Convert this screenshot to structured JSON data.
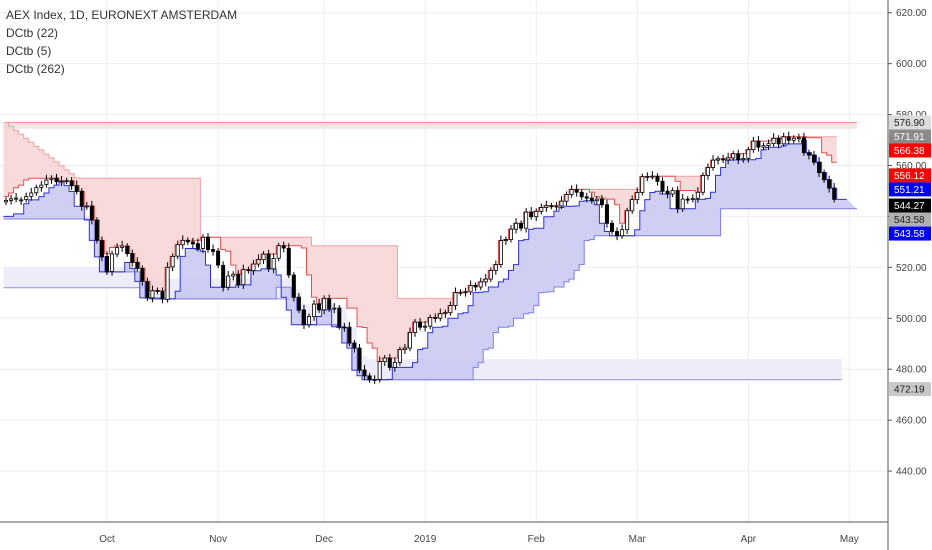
{
  "chart_data": {
    "type": "candlestick",
    "title": "AEX Index, 1D, EURONEXT AMSTERDAM",
    "indicators": [
      "DCtb (22)",
      "DCtb (5)",
      "DCtb (262)"
    ],
    "ylim": [
      420,
      625
    ],
    "y_ticks": [
      440,
      460,
      480,
      500,
      520,
      540,
      560,
      580,
      600,
      620
    ],
    "y_tick_labels": [
      "440.00",
      "460.00",
      "480.00",
      "500.00",
      "520.00",
      "540.00",
      "560.00",
      "580.00",
      "600.00",
      "620.00"
    ],
    "x_labels": [
      "Oct",
      "Nov",
      "Dec",
      "2019",
      "Feb",
      "Mar",
      "Apr",
      "May"
    ],
    "x_label_index": [
      20,
      42,
      63,
      83,
      105,
      125,
      147,
      167
    ],
    "close": [
      546.3,
      546.9,
      547.2,
      546.5,
      547.8,
      549.2,
      551.3,
      552.3,
      554.3,
      555.0,
      553.7,
      553.9,
      554.0,
      552.1,
      549.8,
      544.0,
      544.1,
      538.6,
      530.6,
      524.1,
      518.2,
      525.3,
      527.8,
      528.4,
      525.4,
      521.9,
      519.6,
      514.5,
      508.0,
      510.8,
      510.6,
      507.6,
      520.0,
      524.3,
      528.9,
      530.6,
      530.0,
      529.2,
      527.4,
      531.8,
      527.0,
      526.3,
      520.9,
      512.2,
      516.6,
      517.3,
      513.1,
      519.1,
      518.7,
      521.3,
      523.1,
      525.2,
      519.4,
      523.5,
      528.5,
      527.6,
      517.0,
      508.3,
      503.2,
      497.5,
      500.7,
      505.6,
      503.3,
      507.8,
      503.7,
      504.0,
      496.7,
      496.4,
      490.3,
      488.3,
      479.6,
      477.4,
      475.9,
      476.0,
      483.0,
      484.4,
      480.7,
      482.6,
      487.7,
      488.3,
      494.4,
      498.5,
      496.5,
      496.9,
      500.3,
      500.0,
      501.8,
      502.2,
      505.0,
      510.1,
      510.2,
      510.4,
      512.9,
      512.3,
      514.3,
      515.4,
      518.8,
      521.1,
      530.5,
      530.9,
      535.0,
      537.3,
      535.4,
      541.7,
      539.9,
      542.0,
      543.5,
      544.2,
      544.0,
      544.1,
      546.0,
      548.6,
      550.6,
      549.5,
      547.7,
      547.2,
      546.2,
      546.8,
      544.6,
      537.3,
      534.1,
      532.4,
      534.8,
      542.2,
      546.6,
      549.4,
      555.6,
      555.7,
      555.8,
      553.8,
      549.9,
      548.8,
      550.2,
      543.0,
      546.8,
      546.7,
      547.1,
      549.5,
      556.1,
      559.2,
      562.1,
      562.6,
      562.2,
      563.0,
      564.6,
      562.3,
      562.8,
      566.2,
      569.6,
      567.2,
      567.8,
      568.6,
      570.7,
      568.5,
      571.3,
      569.9,
      570.7,
      570.9,
      565.0,
      564.1,
      561.3,
      557.2,
      554.4,
      551.1,
      546.7
    ],
    "open_offset": [
      0.6,
      0.6,
      0.4,
      0.3,
      1.1,
      1.3,
      2.0,
      0.9,
      1.8,
      0.5,
      -1.4,
      0.2,
      0.1,
      -1.8,
      -2.3,
      -5.9,
      0.3,
      -5.5,
      -7.9,
      -6.4,
      -6.1,
      6.9,
      2.6,
      0.6,
      -2.9,
      -3.5,
      -2.4,
      -5.1,
      -6.4,
      2.8,
      -0.3,
      -2.9,
      12.6,
      4.1,
      4.5,
      1.7,
      -0.6,
      -0.8,
      -1.9,
      4.4,
      -4.9,
      -0.7,
      -5.5,
      -8.6,
      4.4,
      0.7,
      -4.2,
      5.9,
      -0.4,
      2.6,
      1.8,
      2.2,
      -5.9,
      4.1,
      4.9,
      -0.9,
      -10.5,
      -8.7,
      -5.1,
      -5.8,
      3.2,
      4.9,
      -2.4,
      4.5,
      -4.0,
      0.3,
      -7.3,
      -0.2,
      -6.2,
      -2.0,
      -8.7,
      -2.3,
      -1.5,
      0.1,
      7.0,
      1.4,
      -3.7,
      1.9,
      5.1,
      0.6,
      6.1,
      4.1,
      -2.0,
      0.4,
      3.4,
      -0.3,
      1.8,
      0.4,
      2.8,
      5.1,
      0.1,
      0.2,
      2.5,
      -0.6,
      2.0,
      1.1,
      3.4,
      2.3,
      9.4,
      0.4,
      4.1,
      2.3,
      -1.9,
      6.3,
      -1.8,
      2.1,
      1.5,
      0.7,
      -0.2,
      0.1,
      1.9,
      2.6,
      2.0,
      -1.1,
      -1.8,
      -0.5,
      -1.0,
      0.6,
      -2.2,
      -7.3,
      -3.2,
      -1.7,
      2.4,
      7.4,
      4.4,
      2.8,
      6.2,
      0.1,
      0.1,
      -2.0,
      -3.9,
      -1.1,
      1.4,
      -7.2,
      3.8,
      -0.1,
      0.4,
      2.4,
      6.6,
      3.1,
      2.9,
      0.5,
      -0.4,
      0.8,
      1.6,
      -2.3,
      0.5,
      3.4,
      3.4,
      -2.4,
      0.6,
      0.8,
      2.1,
      -2.2,
      2.8,
      -1.4,
      0.8,
      0.2,
      -5.9,
      -0.9,
      -2.8,
      -4.1,
      -2.8,
      -3.3,
      -4.4
    ],
    "dc22_upper": [
      576.9,
      575.4,
      573.8,
      572.3,
      570.7,
      569.2,
      567.6,
      566.1,
      564.5,
      563.0,
      561.4,
      559.9,
      558.3,
      556.8,
      555.2,
      555.0,
      555.0,
      555.0,
      555.0,
      555.0,
      555.0,
      555.0,
      555.0,
      555.0,
      555.0,
      555.0,
      555.0,
      555.0,
      555.0,
      555.0,
      555.0,
      555.0,
      555.0,
      555.0,
      555.0,
      555.0,
      555.0,
      555.0,
      555.0,
      531.8,
      531.8,
      531.8,
      531.8,
      531.8,
      531.8,
      531.8,
      531.8,
      531.8,
      531.8,
      531.8,
      531.8,
      531.8,
      531.8,
      531.8,
      531.8,
      531.8,
      531.8,
      531.8,
      531.8,
      531.8,
      531.8,
      528.5,
      528.5,
      528.5,
      528.5,
      528.5,
      528.5,
      528.5,
      528.5,
      528.5,
      528.5,
      528.5,
      528.5,
      528.5,
      528.5,
      528.5,
      528.5,
      528.5,
      507.8,
      507.8,
      507.8,
      507.8,
      507.8,
      507.8,
      507.8,
      507.8,
      507.8,
      507.8,
      507.8,
      510.1,
      510.2,
      510.4,
      512.9,
      512.9,
      514.3,
      515.4,
      518.8,
      521.1,
      530.5,
      530.9,
      535.0,
      537.3,
      537.3,
      541.7,
      541.7,
      542.0,
      543.5,
      544.2,
      544.2,
      544.2,
      546.0,
      548.6,
      550.6,
      550.6,
      550.6,
      550.6,
      550.6,
      550.6,
      550.6,
      550.6,
      550.6,
      550.6,
      550.6,
      550.6,
      550.6,
      550.6,
      555.6,
      555.7,
      555.8,
      555.8,
      555.8,
      555.8,
      555.8,
      555.8,
      555.8,
      555.8,
      555.8,
      555.8,
      556.1,
      559.2,
      562.1,
      562.6,
      562.6,
      563.0,
      564.6,
      564.6,
      564.6,
      566.2,
      569.6,
      569.6,
      569.6,
      569.6,
      570.7,
      570.7,
      571.3,
      571.3,
      571.3,
      571.3,
      571.3,
      571.3,
      571.3,
      571.3,
      571.3,
      571.3,
      571.3
    ],
    "dc22_lower": [
      539.0,
      539.0,
      539.0,
      539.0,
      539.0,
      539.0,
      539.0,
      539.0,
      539.0,
      539.0,
      539.0,
      539.0,
      539.0,
      539.0,
      539.0,
      539.0,
      539.0,
      538.6,
      530.6,
      524.1,
      518.2,
      518.2,
      518.2,
      518.2,
      518.2,
      518.2,
      518.2,
      514.5,
      508.0,
      508.0,
      508.0,
      507.6,
      507.6,
      507.6,
      507.6,
      507.6,
      507.6,
      507.6,
      507.6,
      507.6,
      507.6,
      507.6,
      507.6,
      507.6,
      507.6,
      507.6,
      507.6,
      507.6,
      507.6,
      507.6,
      507.6,
      507.6,
      507.6,
      507.6,
      512.2,
      512.2,
      512.2,
      508.3,
      503.2,
      497.5,
      497.5,
      497.5,
      497.5,
      497.5,
      497.5,
      497.5,
      496.7,
      496.4,
      490.3,
      488.3,
      479.6,
      477.4,
      475.9,
      475.9,
      475.9,
      475.9,
      475.9,
      475.9,
      475.9,
      475.9,
      475.9,
      475.9,
      475.9,
      475.9,
      475.9,
      475.9,
      475.9,
      475.9,
      475.9,
      475.9,
      475.9,
      475.9,
      475.9,
      480.7,
      482.6,
      487.7,
      488.3,
      494.4,
      496.5,
      496.5,
      496.9,
      500.0,
      500.0,
      501.8,
      502.2,
      505.0,
      510.1,
      510.2,
      510.4,
      512.3,
      512.3,
      514.3,
      515.4,
      518.8,
      521.1,
      530.5,
      530.9,
      532.4,
      532.4,
      532.4,
      532.4,
      532.4,
      532.4,
      532.4,
      532.4,
      532.4,
      532.4,
      532.4,
      532.4,
      532.4,
      532.4,
      532.4,
      532.4,
      532.4,
      532.4,
      532.4,
      532.4,
      532.4,
      532.4,
      532.4,
      532.4,
      532.4,
      543.0,
      543.0,
      543.0,
      543.0,
      543.0,
      543.0,
      543.0,
      543.0,
      543.0,
      543.0,
      543.0,
      543.0,
      543.0,
      543.0,
      543.0,
      543.0,
      543.0,
      543.0,
      543.0,
      543.0,
      543.0,
      543.0,
      543.0,
      543.0,
      543.0,
      543.0,
      543.0
    ],
    "dc5_upper": [
      547.8,
      549.2,
      551.3,
      552.3,
      554.3,
      555.0,
      555.0,
      555.0,
      555.0,
      555.0,
      555.0,
      554.0,
      554.0,
      554.0,
      552.1,
      549.8,
      544.1,
      544.1,
      538.6,
      530.6,
      525.3,
      527.8,
      528.4,
      528.4,
      528.4,
      525.4,
      521.9,
      519.6,
      514.5,
      510.8,
      510.8,
      510.8,
      520.0,
      524.3,
      528.9,
      530.6,
      530.6,
      530.6,
      530.6,
      531.8,
      531.8,
      531.8,
      531.8,
      527.0,
      526.3,
      520.9,
      517.3,
      519.1,
      519.1,
      521.3,
      523.1,
      525.2,
      525.2,
      525.2,
      528.5,
      528.5,
      528.5,
      528.5,
      528.5,
      527.6,
      517.0,
      508.3,
      505.6,
      507.8,
      507.8,
      507.8,
      507.8,
      507.8,
      504.0,
      504.0,
      496.7,
      496.4,
      490.3,
      488.3,
      483.0,
      484.4,
      484.4,
      484.4,
      487.7,
      488.3,
      494.4,
      498.5,
      498.5,
      498.5,
      500.3,
      500.3,
      501.8,
      502.2,
      505.0,
      510.1,
      510.2,
      510.4,
      512.9,
      512.9,
      514.3,
      515.4,
      518.8,
      521.1,
      530.5,
      530.9,
      535.0,
      537.3,
      537.3,
      541.7,
      541.7,
      542.0,
      543.5,
      544.2,
      544.2,
      544.2,
      546.0,
      548.6,
      550.6,
      550.6,
      550.6,
      550.6,
      549.5,
      547.7,
      547.2,
      546.8,
      546.8,
      544.6,
      537.3,
      542.2,
      546.6,
      549.4,
      555.6,
      555.7,
      555.8,
      555.8,
      555.8,
      555.8,
      555.8,
      553.8,
      550.2,
      550.2,
      550.2,
      549.5,
      556.1,
      559.2,
      562.1,
      562.6,
      562.6,
      563.0,
      564.6,
      564.6,
      564.6,
      566.2,
      569.6,
      569.6,
      569.6,
      569.6,
      570.7,
      570.7,
      571.3,
      571.3,
      571.3,
      571.3,
      571.3,
      570.9,
      570.9,
      570.9,
      565.0,
      564.1,
      561.3
    ],
    "dc5_lower": [
      540.0,
      540.0,
      541.0,
      541.0,
      545.0,
      546.5,
      546.5,
      547.8,
      549.2,
      551.3,
      552.3,
      553.7,
      552.1,
      549.8,
      544.0,
      544.0,
      538.6,
      530.6,
      524.1,
      518.2,
      518.2,
      518.2,
      518.2,
      518.2,
      521.9,
      519.6,
      514.5,
      508.0,
      508.0,
      507.6,
      507.6,
      507.6,
      507.6,
      507.6,
      510.6,
      524.3,
      527.4,
      527.4,
      527.0,
      526.3,
      520.9,
      512.2,
      512.2,
      512.2,
      512.2,
      512.2,
      513.1,
      513.1,
      513.1,
      518.7,
      518.7,
      519.4,
      519.4,
      519.4,
      517.0,
      508.3,
      503.2,
      497.5,
      497.5,
      497.5,
      497.5,
      497.5,
      500.7,
      503.3,
      503.3,
      496.7,
      496.4,
      490.3,
      488.3,
      479.6,
      477.4,
      475.9,
      475.9,
      475.9,
      475.9,
      475.9,
      476.0,
      480.7,
      480.7,
      480.7,
      480.7,
      482.6,
      487.7,
      488.3,
      494.4,
      496.5,
      496.5,
      496.9,
      500.0,
      500.0,
      501.8,
      502.2,
      505.0,
      510.1,
      510.2,
      510.4,
      512.3,
      512.3,
      514.3,
      515.4,
      518.8,
      521.1,
      530.5,
      530.9,
      535.0,
      535.4,
      535.4,
      539.9,
      539.9,
      542.0,
      543.5,
      544.0,
      544.0,
      544.1,
      546.0,
      546.2,
      546.2,
      544.6,
      537.3,
      534.1,
      532.4,
      532.4,
      532.4,
      532.4,
      532.4,
      534.8,
      542.2,
      546.6,
      549.4,
      549.9,
      548.8,
      548.8,
      543.0,
      543.0,
      543.0,
      543.0,
      543.0,
      546.7,
      546.7,
      547.1,
      549.5,
      556.1,
      559.2,
      562.1,
      562.2,
      562.2,
      562.2,
      562.3,
      562.3,
      562.8,
      566.2,
      567.2,
      567.2,
      567.2,
      567.8,
      568.5,
      568.5,
      568.5,
      569.9,
      565.0,
      564.1,
      561.3,
      557.2,
      554.4,
      551.1,
      546.7,
      546.7
    ],
    "dc262_upper": [
      576.9,
      576.9,
      576.9,
      576.9,
      576.9,
      576.9,
      576.9,
      576.9,
      576.9,
      576.9,
      576.9,
      576.9,
      576.9,
      576.9,
      576.9,
      576.9,
      576.9,
      576.9,
      576.9,
      576.9,
      576.9,
      576.9,
      576.9,
      576.9,
      576.9,
      576.9,
      576.9,
      576.9,
      576.9,
      576.9,
      576.9,
      576.9,
      576.9,
      576.9,
      576.9,
      576.9,
      576.9,
      576.9,
      576.9,
      576.9,
      576.9,
      576.9,
      576.9,
      576.9,
      576.9,
      576.9,
      576.9,
      576.9,
      576.9,
      576.9,
      576.9,
      576.9,
      576.9,
      576.9,
      576.9,
      576.9,
      576.9,
      576.9,
      576.9,
      576.9,
      576.9,
      576.9,
      576.9,
      576.9,
      576.9,
      576.9,
      576.9,
      576.9,
      576.9,
      576.9,
      576.9,
      576.9,
      576.9,
      576.9,
      576.9,
      576.9,
      576.9,
      576.9,
      576.9,
      576.9,
      576.9,
      576.9,
      576.9,
      576.9,
      576.9,
      576.9,
      576.9,
      576.9,
      576.9,
      576.9,
      576.9,
      576.9,
      576.9,
      576.9,
      576.9,
      576.9,
      576.9,
      576.9,
      576.9,
      576.9,
      576.9,
      576.9,
      576.9,
      576.9,
      576.9,
      576.9,
      576.9,
      576.9,
      576.9,
      576.9,
      576.9,
      576.9,
      576.9,
      576.9,
      576.9,
      576.9,
      576.9,
      576.9,
      576.9,
      576.9,
      576.9,
      576.9,
      576.9,
      576.9,
      576.9,
      576.9,
      576.9,
      576.9,
      576.9,
      576.9,
      576.9,
      576.9,
      576.9,
      576.9,
      576.9,
      576.9,
      576.9,
      576.9,
      576.9,
      576.9,
      576.9,
      576.9,
      576.9,
      576.9,
      576.9,
      576.9,
      576.9,
      576.9,
      576.9,
      576.9,
      576.9,
      576.9,
      576.9,
      576.9,
      576.9,
      576.9,
      576.9,
      576.9,
      576.9,
      576.9,
      576.9,
      576.9,
      576.9,
      576.9,
      576.9,
      576.9,
      576.9,
      576.9,
      576.9
    ],
    "dc262_lower": [
      512.0,
      512.0,
      512.0,
      512.0,
      512.0,
      512.0,
      512.0,
      512.0,
      512.0,
      512.0,
      512.0,
      512.0,
      512.0,
      512.0,
      512.0,
      512.0,
      512.0,
      512.0,
      512.0,
      512.0,
      512.0,
      512.0,
      512.0,
      512.0,
      512.0,
      512.0,
      512.0,
      512.0,
      508.0,
      508.0,
      508.0,
      507.6,
      507.6,
      507.6,
      507.6,
      507.6,
      507.6,
      507.6,
      507.6,
      507.6,
      507.6,
      507.6,
      507.6,
      507.6,
      507.6,
      507.6,
      507.6,
      507.6,
      507.6,
      507.6,
      507.6,
      507.6,
      507.6,
      507.6,
      507.6,
      507.6,
      507.6,
      507.6,
      503.2,
      497.5,
      497.5,
      497.5,
      497.5,
      497.5,
      497.5,
      497.5,
      496.7,
      496.4,
      490.3,
      488.3,
      479.6,
      477.4,
      475.9,
      475.9,
      475.9,
      475.9,
      475.9,
      475.9,
      475.9,
      475.9,
      475.9,
      475.9,
      475.9,
      475.9,
      475.9,
      475.9,
      475.9,
      475.9,
      475.9,
      475.9,
      475.9,
      475.9,
      475.9,
      475.9,
      475.9,
      475.9,
      475.9,
      475.9,
      475.9,
      475.9,
      475.9,
      475.9,
      475.9,
      475.9,
      475.9,
      475.9,
      475.9,
      475.9,
      475.9,
      475.9,
      475.9,
      475.9,
      475.9,
      475.9,
      475.9,
      475.9,
      475.9,
      475.9,
      475.9,
      475.9,
      475.9,
      475.9,
      475.9,
      475.9,
      475.9,
      475.9,
      475.9,
      475.9,
      475.9,
      475.9,
      475.9,
      475.9,
      475.9,
      475.9,
      475.9,
      475.9,
      475.9,
      475.9,
      475.9,
      475.9,
      475.9,
      475.9,
      475.9,
      475.9,
      475.9,
      475.9,
      475.9,
      475.9,
      475.9,
      475.9,
      475.9,
      475.9,
      475.9,
      475.9,
      475.9,
      475.9,
      475.9,
      475.9,
      475.9,
      475.9,
      475.9,
      475.9,
      475.9,
      475.9,
      475.9,
      475.9
    ],
    "price_labels": [
      {
        "text": "576.90",
        "value": 576.9,
        "bg": "#dcdcdc",
        "fg": "#222222"
      },
      {
        "text": "571.91",
        "value": 571.91,
        "bg": "#8a8a8a",
        "fg": "#ffffff"
      },
      {
        "text": "566.38",
        "value": 566.38,
        "bg": "#ff0000",
        "fg": "#ffffff"
      },
      {
        "text": "556.12",
        "value": 556.12,
        "bg": "#ff0000",
        "fg": "#ffffff"
      },
      {
        "text": "551.21",
        "value": 551.21,
        "bg": "#0000ff",
        "fg": "#ffffff"
      },
      {
        "text": "544.27",
        "value": 544.27,
        "bg": "#000000",
        "fg": "#ffffff"
      },
      {
        "text": "543.58",
        "value": 543.58,
        "bg": "#b0b0b0",
        "fg": "#222222"
      },
      {
        "text": "543.58",
        "value": 543.58,
        "bg": "#0000ff",
        "fg": "#ffffff"
      },
      {
        "text": "472.19",
        "value": 472.19,
        "bg": "#c8c8c8",
        "fg": "#222222"
      }
    ],
    "colors": {
      "upper_line": "#e05050",
      "upper_fill": "#f7d4d4",
      "lower_line": "#3030d0",
      "lower_fill": "#c7c7f2",
      "dc262_upper_line": "#f09090",
      "dc262_lower_line": "#9090e0",
      "dc262_fill": "#ececfa",
      "candle_up": "#ffffff",
      "candle_down": "#000000",
      "grid": "#eeeeee",
      "axis": "#555555"
    },
    "grid": true
  }
}
